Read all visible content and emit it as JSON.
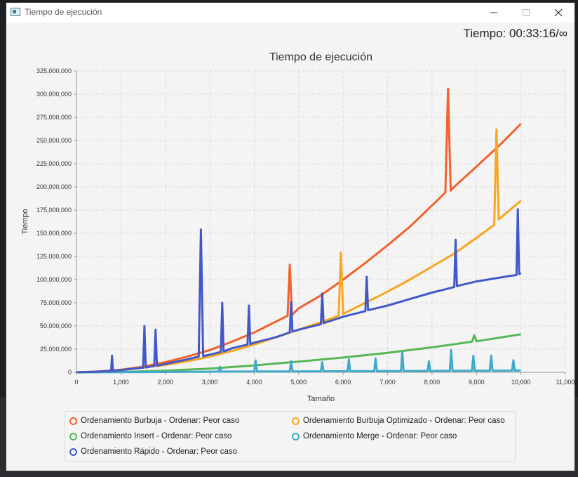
{
  "window": {
    "title": "Tiempo de ejecución"
  },
  "timer": "Tiempo: 00:33:16/∞",
  "chart_data": {
    "type": "line",
    "title": "Tiempo de ejecución",
    "xlabel": "Tamaño",
    "ylabel": "Tiempo",
    "xlim": [
      0,
      11000
    ],
    "ylim": [
      0,
      325000000
    ],
    "x_ticks": [
      "0",
      "1,000",
      "2,000",
      "3,000",
      "4,000",
      "5,000",
      "6,000",
      "7,000",
      "8,000",
      "9,000",
      "10,000",
      "11,000"
    ],
    "y_ticks": [
      "0",
      "25,000,000",
      "50,000,000",
      "75,000,000",
      "100,000,000",
      "125,000,000",
      "150,000,000",
      "175,000,000",
      "200,000,000",
      "225,000,000",
      "250,000,000",
      "275,000,000",
      "300,000,000",
      "325,000,000"
    ],
    "grid": true,
    "legend_position": "bottom",
    "series": [
      {
        "name": "Ordenamiento Burbuja - Ordenar: Peor caso",
        "color": "#f3622d",
        "x": [
          0,
          500,
          1000,
          1500,
          2000,
          2500,
          3000,
          3500,
          4000,
          4500,
          4750,
          4800,
          4850,
          5000,
          5500,
          6000,
          6500,
          7000,
          7500,
          8000,
          8300,
          8360,
          8420,
          8500,
          9000,
          9500,
          10000
        ],
        "y": [
          0,
          900000,
          2800000,
          6200000,
          11000000,
          17000000,
          24000000,
          33000000,
          43000000,
          55000000,
          61000000,
          116000000,
          62000000,
          69000000,
          83000000,
          100000000,
          118000000,
          137000000,
          157000000,
          180000000,
          194000000,
          306000000,
          196000000,
          200000000,
          222000000,
          244000000,
          268000000
        ]
      },
      {
        "name": "Ordenamiento Burbuja Optimizado - Ordenar: Peor caso",
        "color": "#f9a51e",
        "x": [
          0,
          500,
          1000,
          1500,
          2000,
          2500,
          3000,
          3500,
          4000,
          4500,
          5000,
          5500,
          5900,
          5950,
          6000,
          6500,
          7000,
          7500,
          8000,
          8500,
          9000,
          9400,
          9450,
          9500,
          10000
        ],
        "y": [
          0,
          700000,
          2500000,
          5000000,
          8000000,
          12000000,
          17000000,
          23000000,
          30000000,
          38000000,
          46000000,
          54000000,
          61000000,
          129000000,
          63000000,
          75000000,
          87000000,
          100000000,
          114000000,
          128000000,
          145000000,
          159000000,
          262000000,
          165000000,
          185000000
        ]
      },
      {
        "name": "Ordenamiento Insert - Ordenar: Peor caso",
        "color": "#57b757",
        "x": [
          0,
          1000,
          2000,
          3000,
          4000,
          5000,
          6000,
          7000,
          8000,
          8900,
          8950,
          9000,
          10000
        ],
        "y": [
          0,
          400000,
          1800000,
          4000000,
          7500000,
          11500000,
          16000000,
          21000000,
          27000000,
          33000000,
          40000000,
          33500000,
          41000000
        ]
      },
      {
        "name": "Ordenamiento Merge - Ordenar: Peor caso",
        "color": "#41a9c9",
        "x": [
          0,
          1000,
          2000,
          3000,
          3200,
          3230,
          3260,
          4000,
          4030,
          4060,
          4800,
          4830,
          4860,
          5500,
          5530,
          5560,
          6100,
          6130,
          6160,
          6700,
          6730,
          6760,
          7300,
          7330,
          7360,
          7900,
          7930,
          7960,
          8400,
          8430,
          8460,
          8900,
          8930,
          8960,
          9300,
          9330,
          9360,
          9800,
          9830,
          9860,
          10000
        ],
        "y": [
          0,
          200000,
          400000,
          700000,
          800000,
          6000000,
          800000,
          900000,
          13000000,
          900000,
          1000000,
          12000000,
          1000000,
          1100000,
          11000000,
          1100000,
          1200000,
          14000000,
          1200000,
          1300000,
          15000000,
          1300000,
          1400000,
          22000000,
          1400000,
          1500000,
          12000000,
          1500000,
          1600000,
          24000000,
          1600000,
          1700000,
          18000000,
          1700000,
          1800000,
          18000000,
          1800000,
          1900000,
          13000000,
          1900000,
          2000000
        ]
      },
      {
        "name": "Ordenamiento Rápido - Ordenar: Peor caso",
        "color": "#4258c9",
        "x": [
          0,
          500,
          780,
          800,
          820,
          1000,
          1500,
          1530,
          1560,
          1750,
          1780,
          1810,
          2000,
          2500,
          2750,
          2800,
          2850,
          3000,
          3250,
          3280,
          3310,
          3500,
          3850,
          3880,
          3910,
          4000,
          4500,
          4800,
          4830,
          4860,
          5000,
          5500,
          5530,
          5560,
          6000,
          6500,
          6530,
          6560,
          7000,
          7500,
          8000,
          8500,
          8530,
          8560,
          9000,
          9500,
          9900,
          9930,
          9960,
          10000
        ],
        "y": [
          0,
          800000,
          1500000,
          18000000,
          1600000,
          2500000,
          5000000,
          50000000,
          5200000,
          7000000,
          46000000,
          7200000,
          9000000,
          14000000,
          17000000,
          154000000,
          17500000,
          19000000,
          22000000,
          75000000,
          22500000,
          26000000,
          30000000,
          72000000,
          30500000,
          32000000,
          38000000,
          43000000,
          76000000,
          44000000,
          46000000,
          52000000,
          85000000,
          53000000,
          60000000,
          66000000,
          103000000,
          67000000,
          72000000,
          79000000,
          86000000,
          92000000,
          143000000,
          93000000,
          98000000,
          102000000,
          105000000,
          176000000,
          106000000,
          107000000
        ]
      }
    ]
  }
}
